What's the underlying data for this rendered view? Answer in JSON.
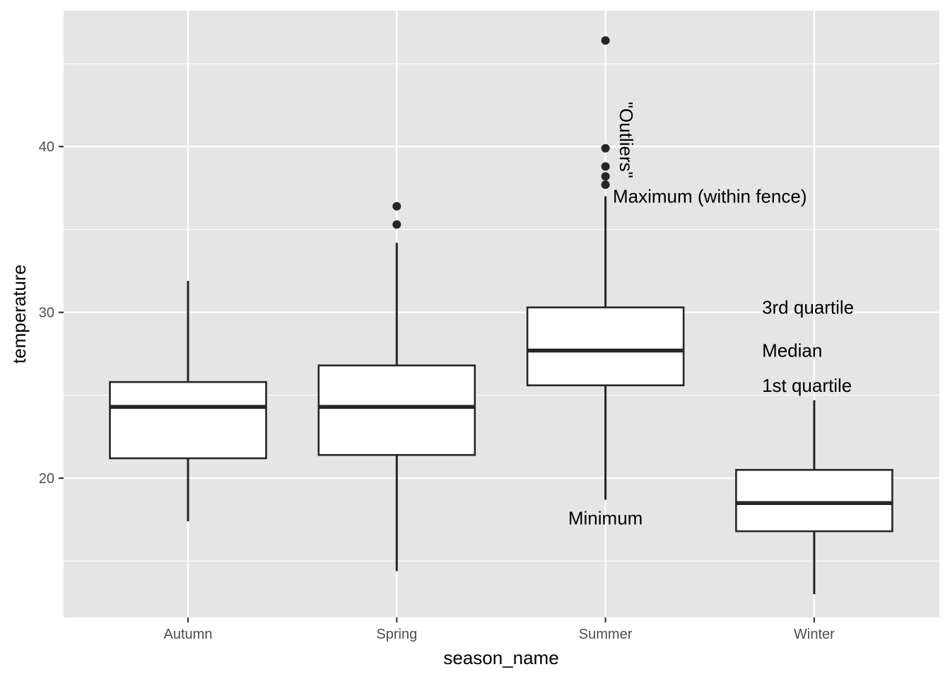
{
  "chart_data": {
    "type": "boxplot",
    "xlabel": "season_name",
    "ylabel": "temperature",
    "categories": [
      "Autumn",
      "Spring",
      "Summer",
      "Winter"
    ],
    "ylim": [
      11.6,
      48.2
    ],
    "yticks": [
      20,
      30,
      40
    ],
    "grid": true,
    "legend": "none",
    "colors": {
      "panel": "#e5e5e5",
      "grid": "#ffffff",
      "box_fill": "#ffffff",
      "box_line": "#262626",
      "tick_text": "#4d4d4d"
    },
    "boxes": [
      {
        "category": "Autumn",
        "min": 17.4,
        "q1": 21.2,
        "median": 24.3,
        "q3": 25.8,
        "max": 31.9,
        "outliers": []
      },
      {
        "category": "Spring",
        "min": 14.4,
        "q1": 21.4,
        "median": 24.3,
        "q3": 26.8,
        "max": 34.2,
        "outliers": [
          35.3,
          36.4
        ]
      },
      {
        "category": "Summer",
        "min": 18.7,
        "q1": 25.6,
        "median": 27.7,
        "q3": 30.3,
        "max": 37.0,
        "outliers": [
          37.7,
          38.2,
          38.8,
          39.9,
          46.4
        ]
      },
      {
        "category": "Winter",
        "min": 13.0,
        "q1": 16.8,
        "median": 18.5,
        "q3": 20.5,
        "max": 24.7,
        "outliers": []
      }
    ],
    "annotations": [
      {
        "text": "\"Outliers\"",
        "x_category": "Summer",
        "x_offset": 0.1,
        "y": 40.4,
        "angle": 90,
        "anchor": "middle"
      },
      {
        "text": "Maximum (within fence)",
        "x_category": "Summer",
        "x_offset": 0.5,
        "y": 37.0,
        "angle": 0,
        "anchor": "middle"
      },
      {
        "text": "3rd quartile",
        "x_category": "Summer",
        "x_offset": 0.75,
        "y": 30.3,
        "angle": 0,
        "anchor": "start"
      },
      {
        "text": "Median",
        "x_category": "Summer",
        "x_offset": 0.75,
        "y": 27.7,
        "angle": 0,
        "anchor": "start"
      },
      {
        "text": "1st quartile",
        "x_category": "Summer",
        "x_offset": 0.75,
        "y": 25.6,
        "angle": 0,
        "anchor": "start"
      },
      {
        "text": "Minimum",
        "x_category": "Summer",
        "x_offset": 0.0,
        "y": 17.6,
        "angle": 0,
        "anchor": "middle"
      }
    ]
  }
}
